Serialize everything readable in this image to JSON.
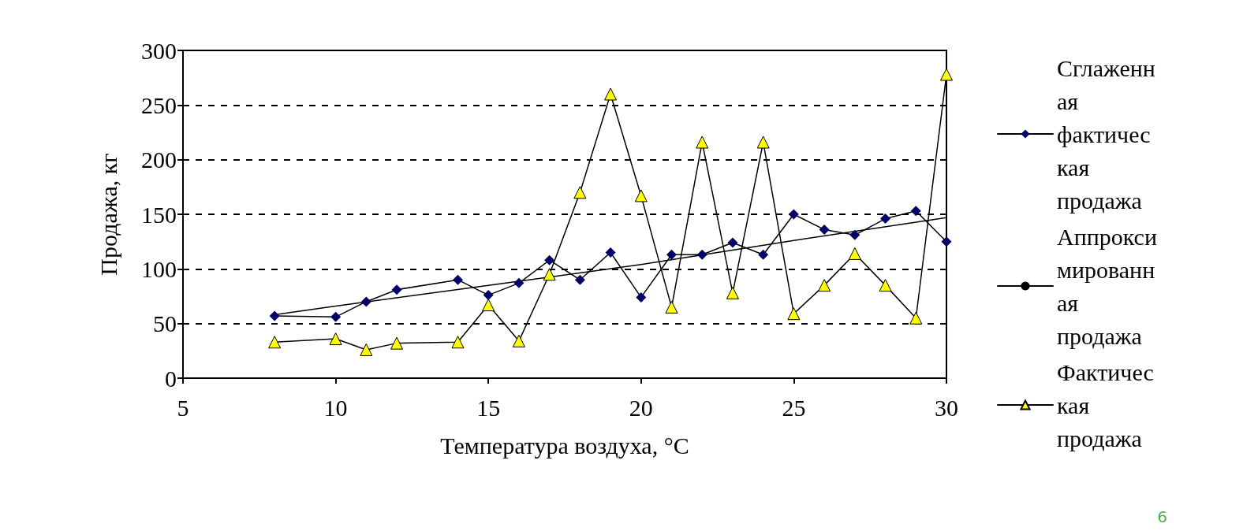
{
  "chart_data": {
    "type": "line",
    "xlabel": "Температура воздуха, °C",
    "ylabel": "Продажа, кг",
    "xlim": [
      5,
      30
    ],
    "xticks": [
      5,
      10,
      15,
      20,
      25,
      30
    ],
    "ylim": [
      0,
      300
    ],
    "yticks": [
      0,
      50,
      100,
      150,
      200,
      250,
      300
    ],
    "grid": "y",
    "legend": "right",
    "series": [
      {
        "name": "Сглаженная фактическая продажа",
        "color": "#000066",
        "marker": "diamond",
        "x": [
          8,
          10,
          11,
          12,
          14,
          15,
          16,
          17,
          18,
          19,
          20,
          21,
          22,
          23,
          24,
          25,
          26,
          27,
          28,
          29,
          30
        ],
        "values": [
          57,
          56,
          70,
          81,
          90,
          76,
          87,
          108,
          90,
          115,
          74,
          113,
          113,
          124,
          113,
          150,
          136,
          131,
          146,
          153,
          125
        ]
      },
      {
        "name": "Аппроксимированная продажа",
        "color": "#000000",
        "marker": "none",
        "x": [
          8,
          10,
          15,
          20,
          25,
          30
        ],
        "values": [
          58,
          66,
          85,
          104,
          126,
          147
        ]
      },
      {
        "name": "Фактическая продажа",
        "color": "#ffff00",
        "marker": "triangle",
        "x": [
          8,
          10,
          11,
          12,
          14,
          15,
          16,
          17,
          18,
          19,
          20,
          21,
          22,
          23,
          24,
          25,
          26,
          27,
          28,
          29,
          30
        ],
        "values": [
          33,
          36,
          26,
          32,
          33,
          67,
          34,
          95,
          170,
          260,
          167,
          65,
          216,
          78,
          216,
          59,
          85,
          114,
          85,
          55,
          278
        ]
      }
    ],
    "annotations": [
      "6"
    ]
  }
}
